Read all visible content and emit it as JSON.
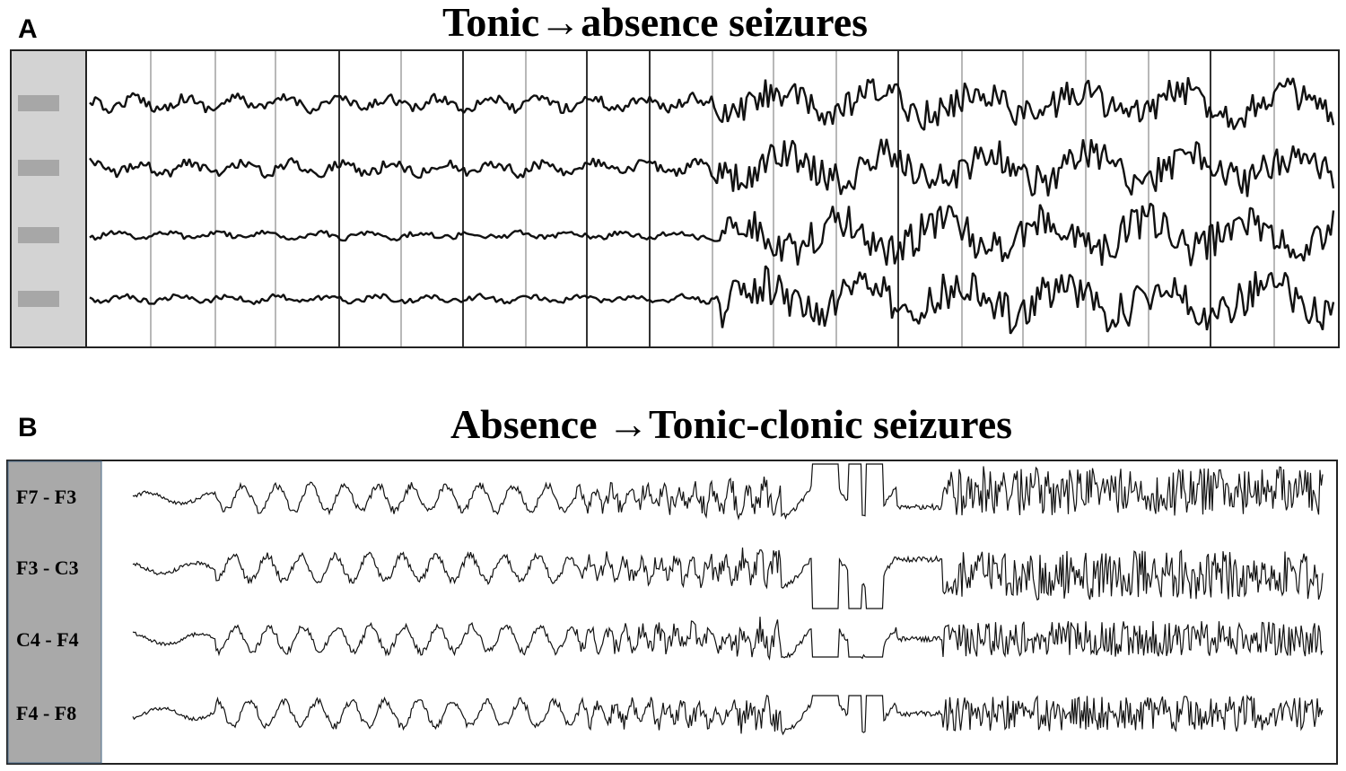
{
  "panel_a": {
    "label": "A",
    "title": "Tonic→absence seizures"
  },
  "panel_b": {
    "label": "B",
    "title": "Absence →Tonic-clonic seizures",
    "channels": [
      "F7 - F3",
      "F3 - C3",
      "C4 - F4",
      "F4 - F8"
    ]
  }
}
